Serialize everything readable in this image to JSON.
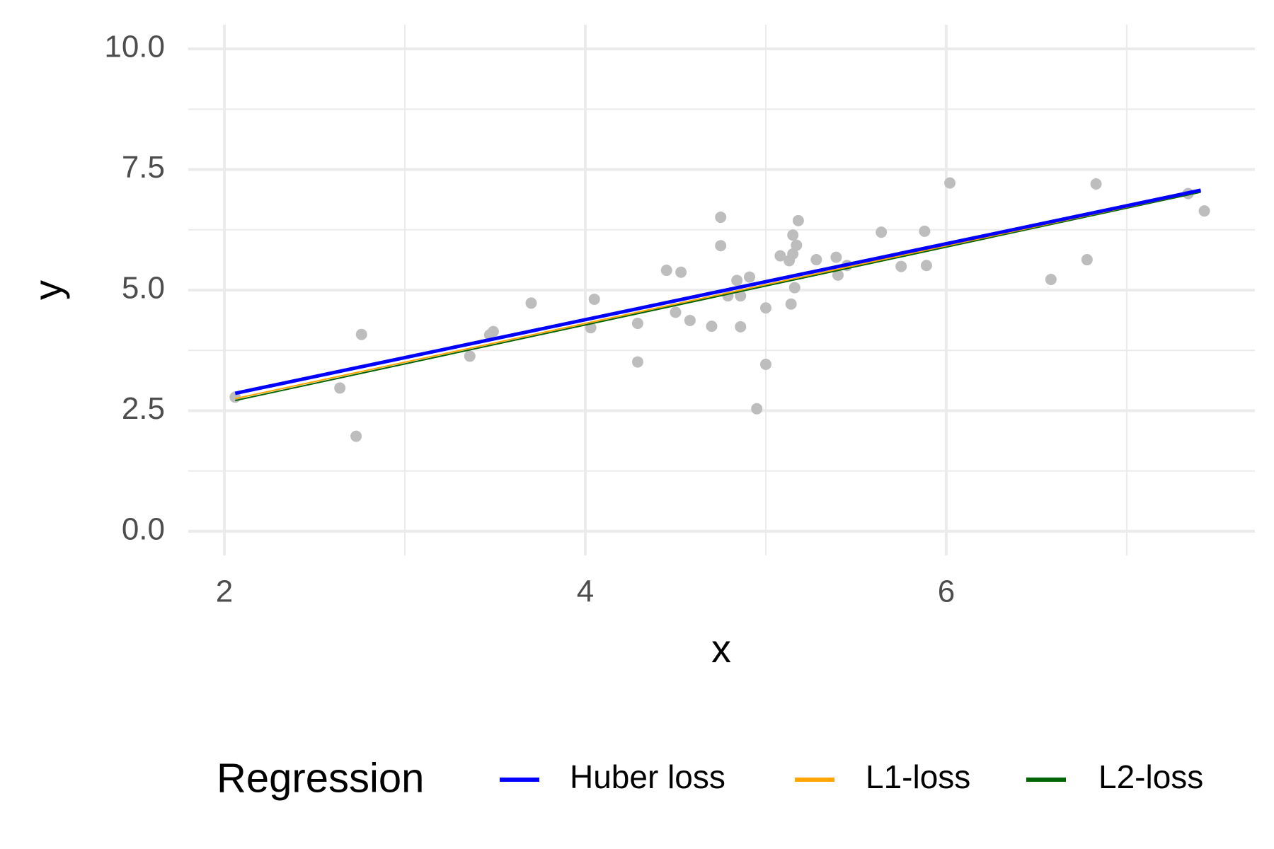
{
  "chart_data": {
    "type": "scatter",
    "x_label": "x",
    "y_label": "y",
    "legend_title": "Regression",
    "legend_position": "bottom",
    "grid": true,
    "point_color": "#bdbdbd",
    "xlim": [
      1.8,
      7.71
    ],
    "ylim": [
      -0.5,
      10.5
    ],
    "xticks": [
      2,
      4,
      6
    ],
    "xminor": [
      3,
      5,
      7
    ],
    "yticks": [
      {
        "value": 0,
        "label": "0.0"
      },
      {
        "value": 2.5,
        "label": "2.5"
      },
      {
        "value": 5,
        "label": "5.0"
      },
      {
        "value": 7.5,
        "label": "7.5"
      },
      {
        "value": 10,
        "label": "10.0"
      }
    ],
    "yminor": [
      1.25,
      3.75,
      6.25,
      8.75
    ],
    "points": {
      "x": [
        2.06,
        2.64,
        2.73,
        2.76,
        3.36,
        3.47,
        3.49,
        3.7,
        4.03,
        4.05,
        4.29,
        4.29,
        4.45,
        4.53,
        4.5,
        4.58,
        4.7,
        4.75,
        4.75,
        4.79,
        4.84,
        4.86,
        4.86,
        4.91,
        4.95,
        5.0,
        5.0,
        5.08,
        5.13,
        5.14,
        5.15,
        5.15,
        5.16,
        5.17,
        5.18,
        5.28,
        5.39,
        5.4,
        5.45,
        5.64,
        5.75,
        5.88,
        5.89,
        6.02,
        6.58,
        6.78,
        6.83,
        7.34,
        7.43
      ],
      "y": [
        2.78,
        2.97,
        1.97,
        4.08,
        3.63,
        4.07,
        4.14,
        4.73,
        4.22,
        4.81,
        4.31,
        3.51,
        5.41,
        5.37,
        4.54,
        4.37,
        4.25,
        6.51,
        5.92,
        4.88,
        5.2,
        4.88,
        4.24,
        5.27,
        2.54,
        3.46,
        4.63,
        5.71,
        5.61,
        4.71,
        6.14,
        5.75,
        5.05,
        5.93,
        6.44,
        5.63,
        5.68,
        5.31,
        5.51,
        6.2,
        5.49,
        6.22,
        5.51,
        7.22,
        5.22,
        5.63,
        7.2,
        7.0,
        6.64
      ]
    },
    "series": [
      {
        "name": "Huber loss",
        "color": "#0000ff",
        "width": 5,
        "x": [
          2.06,
          7.41
        ],
        "values": [
          2.86,
          7.07
        ]
      },
      {
        "name": "L1-loss",
        "color": "#ffa500",
        "width": 2,
        "x": [
          2.06,
          7.41
        ],
        "values": [
          2.75,
          7.05
        ]
      },
      {
        "name": "L2-loss",
        "color": "#006400",
        "width": 2,
        "x": [
          2.06,
          7.41
        ],
        "values": [
          2.71,
          7.03
        ]
      }
    ]
  }
}
